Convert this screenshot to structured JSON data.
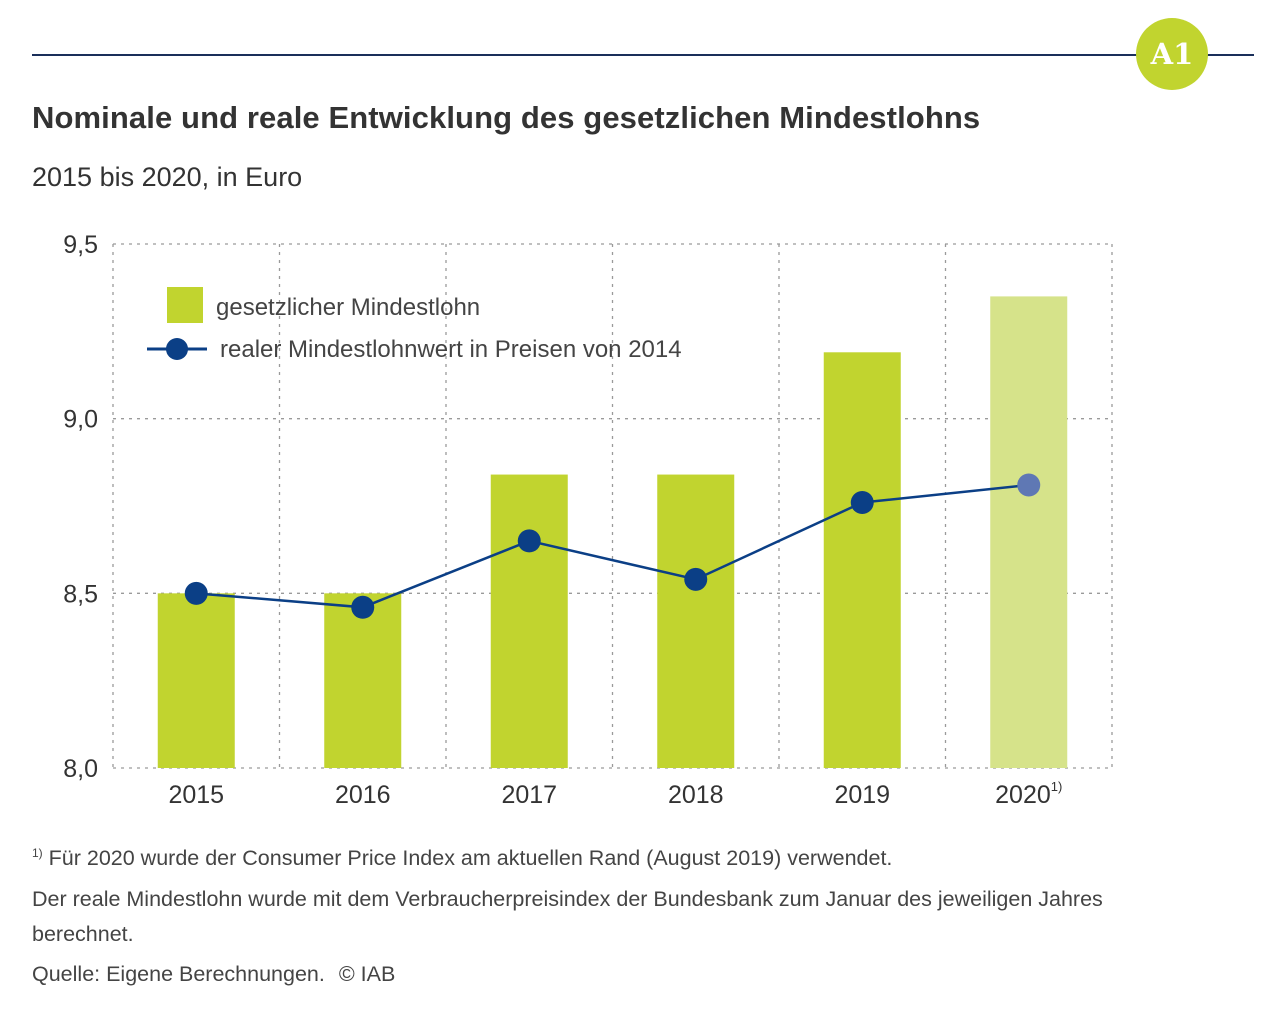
{
  "badge": "A1",
  "header": {
    "title": "Nominale und reale Entwicklung des gesetzlichen Mindestlohns",
    "subtitle": "2015 bis 2020, in Euro"
  },
  "colors": {
    "bar": "#c1d42f",
    "bar_projected": "#d6e38a",
    "line": "#0b3f86",
    "point_projected": "#5f78b4",
    "rule": "#1a2f5a",
    "grid": "#9a9a9a"
  },
  "chart_data": {
    "type": "bar",
    "title": "Nominale und reale Entwicklung des gesetzlichen Mindestlohns",
    "subtitle": "2015 bis 2020, in Euro",
    "xlabel": "",
    "ylabel": "",
    "categories": [
      "2015",
      "2016",
      "2017",
      "2018",
      "2019",
      "2020"
    ],
    "category_labels": [
      {
        "text": "2015",
        "sup": ""
      },
      {
        "text": "2016",
        "sup": ""
      },
      {
        "text": "2017",
        "sup": ""
      },
      {
        "text": "2018",
        "sup": ""
      },
      {
        "text": "2019",
        "sup": ""
      },
      {
        "text": "2020",
        "sup": "1)"
      }
    ],
    "ylim": [
      8.0,
      9.5
    ],
    "yticks": [
      8.0,
      8.5,
      9.0,
      9.5
    ],
    "ytick_labels": [
      "8,0",
      "8,5",
      "9,0",
      "9,5"
    ],
    "grid": true,
    "legend_position": "top-left",
    "series": [
      {
        "name": "gesetzlicher Mindestlohn",
        "kind": "bar",
        "values": [
          8.5,
          8.5,
          8.84,
          8.84,
          9.19,
          9.35
        ],
        "projected": [
          false,
          false,
          false,
          false,
          false,
          true
        ]
      },
      {
        "name": "realer Mindestlohnwert in Preisen von 2014",
        "kind": "line",
        "values": [
          8.5,
          8.46,
          8.65,
          8.54,
          8.76,
          8.81
        ],
        "projected": [
          false,
          false,
          false,
          false,
          false,
          true
        ]
      }
    ]
  },
  "footnotes": {
    "note1_marker": "1)",
    "note1": "Für 2020 wurde der Consumer Price Index am aktuellen Rand (August 2019) verwendet.",
    "note2_line1": "Der reale Mindestlohn wurde mit dem Verbraucherpreisindex der Bundesbank zum Januar des jeweiligen Jahres",
    "note2_line2": "berechnet.",
    "source": "Quelle: Eigene Berechnungen.",
    "copyright": "© IAB"
  }
}
